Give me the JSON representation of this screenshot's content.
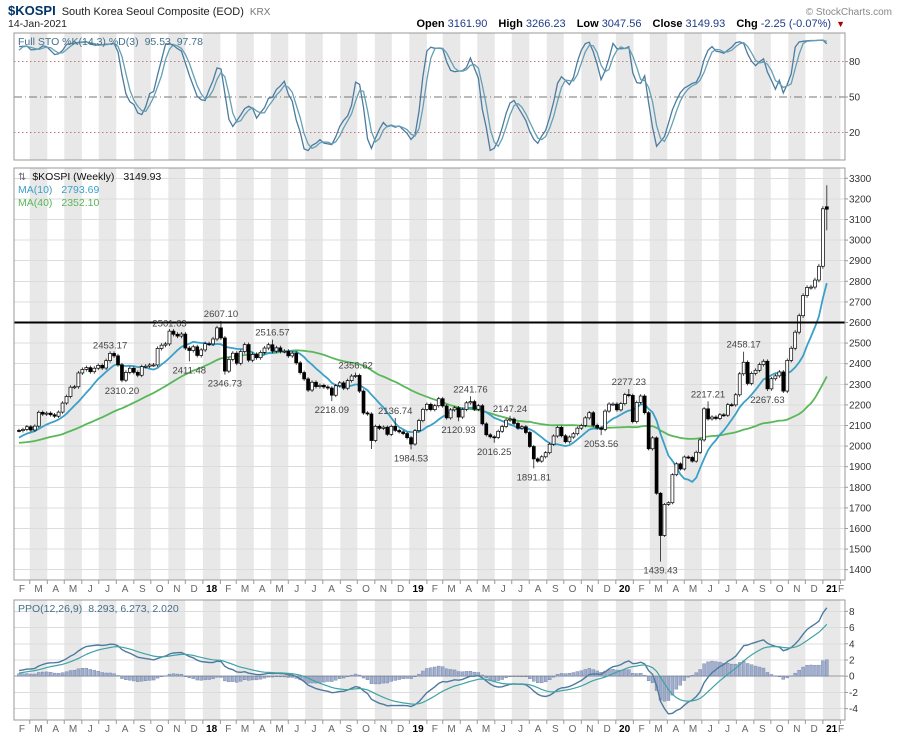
{
  "header": {
    "symbol": "$KOSPI",
    "name": "South Korea Seoul Composite (EOD)",
    "exchange": "KRX",
    "copyright": "© StockCharts.com",
    "date": "14-Jan-2021",
    "quote": {
      "open_label": "Open",
      "open": "3161.90",
      "high_label": "High",
      "high": "3266.23",
      "low_label": "Low",
      "low": "3047.56",
      "close_label": "Close",
      "close": "3149.93",
      "chg_label": "Chg",
      "chg": "-2.25 (-0.07%)",
      "chg_arrow": "▼"
    }
  },
  "sto_panel": {
    "label": "Full STO %K(14,3) %D(3)",
    "values": "95.53, 97.78"
  },
  "main_panel": {
    "label": "$KOSPI (Weekly)",
    "close": "3149.93",
    "arrows_icon": "⇅",
    "ma10_label": "MA(10)",
    "ma10_value": "2793.69",
    "ma40_label": "MA(40)",
    "ma40_value": "2352.10"
  },
  "ppo_panel": {
    "label": "PPO(12,26,9)",
    "values": "8.293, 6.273, 2.020"
  },
  "x_axis": {
    "labels": [
      "F",
      "M",
      "A",
      "M",
      "J",
      "J",
      "A",
      "S",
      "O",
      "N",
      "D",
      "18",
      "F",
      "M",
      "A",
      "M",
      "J",
      "J",
      "A",
      "S",
      "O",
      "N",
      "D",
      "19",
      "F",
      "M",
      "A",
      "M",
      "J",
      "J",
      "A",
      "S",
      "O",
      "N",
      "D",
      "20",
      "F",
      "M",
      "A",
      "M",
      "J",
      "J",
      "A",
      "S",
      "O",
      "N",
      "D",
      "21",
      "F"
    ]
  },
  "colors": {
    "stripe": "#e8e8e8",
    "grid": "#dcdcdc",
    "border": "#999999",
    "candle": "#000000",
    "ma10": "#3aa0c8",
    "ma40": "#59b859",
    "sto_k": "#4d7ba0",
    "sto_d": "#64a0b4",
    "ob_os": "#bb7c7c",
    "mid50": "#777777",
    "ppo_line": "#4d7ba0",
    "ppo_signal": "#3fa3a3",
    "ppo_hist": "#8c9cc0",
    "ppo_hist_stroke": "#6a7ca6",
    "zero": "#9a9a9a",
    "hline": "#000000",
    "axis_text": "#333333",
    "month_text": "#666666",
    "year_text": "#000000",
    "annotation_text": "#444444"
  },
  "chart_data": {
    "type": "candlestick+indicators",
    "title": "$KOSPI (Weekly) — South Korea Seoul Composite (EOD) KRX",
    "freq": "weekly",
    "start_week_ending": "2017-02-10",
    "last_date": "2021-01-14",
    "y_axis": {
      "min": 1400,
      "max": 3300,
      "step": 100
    },
    "sto_ticks": [
      80,
      50,
      20
    ],
    "ppo_ticks": [
      -4,
      -2,
      0,
      2,
      4,
      6,
      8
    ],
    "hline": 2600,
    "wick_pad": 0.004,
    "last_candle": {
      "open": 3161.9,
      "high": 3266.23,
      "low": 3047.56,
      "close": 3149.93
    },
    "indicator_values": {
      "sto_k": 95.53,
      "sto_d": 97.78,
      "ma10": 2793.69,
      "ma40": 2352.1,
      "ppo": 8.293,
      "ppo_signal": 6.273,
      "ppo_hist": 2.02
    },
    "pre_closes": [
      2015,
      2008,
      2001,
      1995,
      1976,
      1967,
      1956,
      1947,
      1969,
      1986,
      2002,
      1986,
      1925,
      1987,
      2010,
      2021,
      2012,
      2026,
      2044,
      2055,
      2043,
      2037,
      2054,
      2068,
      2065,
      2047,
      2033,
      2026,
      2008,
      1974,
      1983,
      1971,
      2002,
      2024,
      2035,
      2049,
      2042,
      2065,
      2068,
      2076
    ],
    "closes": [
      2075,
      2081,
      2094,
      2078,
      2097,
      2164,
      2155,
      2160,
      2152,
      2145,
      2165,
      2209,
      2241,
      2286,
      2288,
      2355,
      2372,
      2381,
      2361,
      2378,
      2392,
      2379,
      2415,
      2450,
      2438,
      2395,
      2320,
      2358,
      2378,
      2358,
      2344,
      2386,
      2388,
      2394,
      2394,
      2474,
      2490,
      2496,
      2558,
      2543,
      2534,
      2544,
      2476,
      2464,
      2482,
      2440,
      2467,
      2497,
      2496,
      2520,
      2574,
      2525,
      2364,
      2421,
      2451,
      2402,
      2459,
      2493,
      2417,
      2445,
      2429,
      2455,
      2476,
      2492,
      2461,
      2477,
      2460,
      2461,
      2438,
      2451,
      2404,
      2357,
      2326,
      2272,
      2310,
      2289,
      2295,
      2287,
      2282,
      2247,
      2293,
      2307,
      2281,
      2318,
      2340,
      2343,
      2267,
      2161,
      2156,
      2027,
      2096,
      2086,
      2092,
      2057,
      2096,
      2076,
      2069,
      2061,
      2041,
      2010,
      2075,
      2124,
      2178,
      2203,
      2177,
      2196,
      2230,
      2195,
      2137,
      2176,
      2186,
      2141,
      2178,
      2210,
      2216,
      2179,
      2196,
      2108,
      2055,
      2045,
      2042,
      2072,
      2095,
      2126,
      2131,
      2110,
      2087,
      2094,
      2066,
      1998,
      1938,
      1927,
      1948,
      1968,
      2009,
      2049,
      2091,
      2050,
      2021,
      2044,
      2060,
      2087,
      2100,
      2137,
      2162,
      2101,
      2088,
      2081,
      2170,
      2204,
      2204,
      2176,
      2206,
      2250,
      2246,
      2119,
      2212,
      2243,
      2162,
      1987,
      2040,
      1771,
      1566,
      1717,
      1725,
      1861,
      1914,
      1889,
      1947,
      1945,
      1927,
      1970,
      2030,
      2181,
      2132,
      2141,
      2134,
      2152,
      2150,
      2201,
      2200,
      2249,
      2351,
      2407,
      2304,
      2353,
      2368,
      2396,
      2412,
      2278,
      2327,
      2341,
      2360,
      2267,
      2416,
      2475,
      2553,
      2633,
      2731,
      2770,
      2772,
      2806,
      2873,
      3152,
      3149.93
    ],
    "pivots": [
      {
        "i": 23,
        "v": 2453.17,
        "side": "high"
      },
      {
        "i": 26,
        "v": 2310.2,
        "side": "low"
      },
      {
        "i": 38,
        "v": 2561.63,
        "side": "high"
      },
      {
        "i": 43,
        "v": 2411.48,
        "side": "low"
      },
      {
        "i": 51,
        "v": 2607.1,
        "side": "high"
      },
      {
        "i": 52,
        "v": 2346.73,
        "side": "low"
      },
      {
        "i": 64,
        "v": 2516.57,
        "side": "high"
      },
      {
        "i": 79,
        "v": 2218.09,
        "side": "low"
      },
      {
        "i": 85,
        "v": 2356.62,
        "side": "high"
      },
      {
        "i": 89,
        "v": 1985.95,
        "side": "low",
        "hide": true
      },
      {
        "i": 95,
        "v": 2136.74,
        "side": "high"
      },
      {
        "i": 99,
        "v": 1984.53,
        "side": "low"
      },
      {
        "i": 111,
        "v": 2120.93,
        "side": "low"
      },
      {
        "i": 114,
        "v": 2241.76,
        "side": "high"
      },
      {
        "i": 120,
        "v": 2016.25,
        "side": "low"
      },
      {
        "i": 124,
        "v": 2147.24,
        "side": "high"
      },
      {
        "i": 130,
        "v": 1891.81,
        "side": "low"
      },
      {
        "i": 147,
        "v": 2053.56,
        "side": "low"
      },
      {
        "i": 154,
        "v": 2277.23,
        "side": "high"
      },
      {
        "i": 162,
        "v": 1439.43,
        "side": "low"
      },
      {
        "i": 174,
        "v": 2217.21,
        "side": "high"
      },
      {
        "i": 183,
        "v": 2458.17,
        "side": "high"
      },
      {
        "i": 189,
        "v": 2267.63,
        "side": "low"
      }
    ]
  }
}
